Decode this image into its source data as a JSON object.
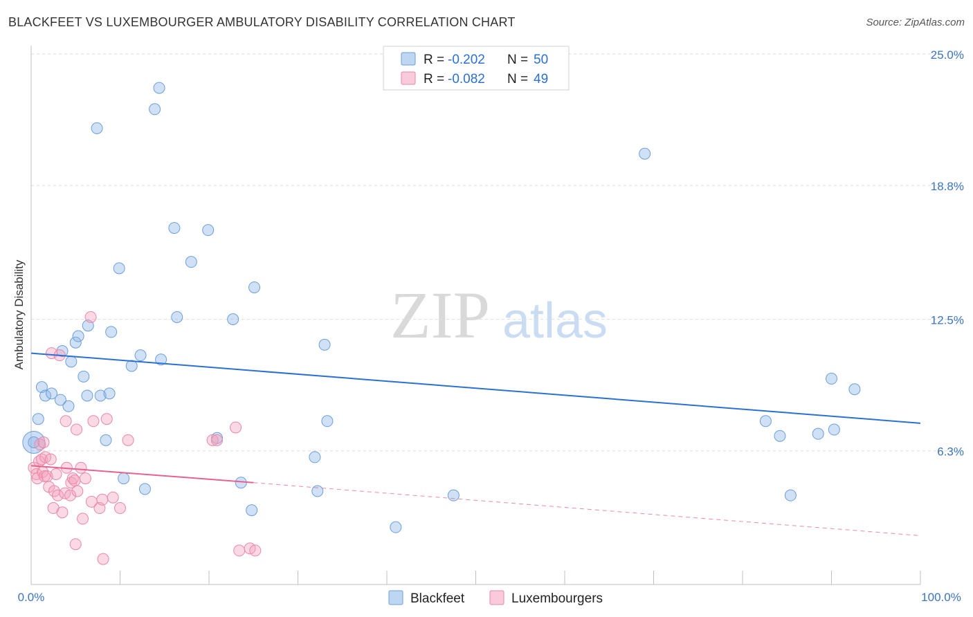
{
  "chart_data": {
    "type": "scatter",
    "title": "BLACKFEET VS LUXEMBOURGER AMBULATORY DISABILITY CORRELATION CHART",
    "source": "Source: ZipAtlas.com",
    "xlabel": "",
    "ylabel": "Ambulatory Disability",
    "watermark": {
      "zip": "ZIP",
      "atlas": "atlas"
    },
    "xlim": [
      0,
      100
    ],
    "ylim": [
      0,
      25
    ],
    "x_tick_labels": {
      "min": "0.0%",
      "max": "100.0%"
    },
    "y_ticks": [
      {
        "value": 6.3,
        "label": "6.3%"
      },
      {
        "value": 12.5,
        "label": "12.5%"
      },
      {
        "value": 18.8,
        "label": "18.8%"
      },
      {
        "value": 25.0,
        "label": "25.0%"
      }
    ],
    "legend": {
      "position": "top-center",
      "rows": [
        {
          "r_label": "R = ",
          "r_value": "-0.202",
          "n_label": "N = ",
          "n_value": "50"
        },
        {
          "r_label": "R = ",
          "r_value": "-0.082",
          "n_label": "N = ",
          "n_value": "49"
        }
      ]
    },
    "bottom_legend": [
      "Blackfeet",
      "Luxembourgers"
    ],
    "series": [
      {
        "name": "Blackfeet",
        "color": "#8ab4e8",
        "line_color": "#2a6fd4",
        "trend": {
          "x0": 0,
          "y0": 10.9,
          "x1": 100,
          "y1": 7.6
        },
        "points": [
          [
            0.3,
            6.7
          ],
          [
            0.8,
            7.8
          ],
          [
            1.2,
            9.3
          ],
          [
            1.6,
            8.9
          ],
          [
            2.3,
            9.0
          ],
          [
            3.3,
            8.7
          ],
          [
            3.5,
            11.0
          ],
          [
            4.2,
            8.4
          ],
          [
            4.5,
            10.5
          ],
          [
            5.0,
            11.4
          ],
          [
            5.3,
            11.7
          ],
          [
            5.9,
            9.8
          ],
          [
            6.3,
            8.9
          ],
          [
            6.4,
            12.2
          ],
          [
            7.4,
            21.5
          ],
          [
            7.8,
            8.9
          ],
          [
            8.4,
            6.8
          ],
          [
            8.8,
            9.0
          ],
          [
            9.0,
            11.9
          ],
          [
            9.9,
            14.9
          ],
          [
            10.4,
            5.0
          ],
          [
            11.3,
            10.3
          ],
          [
            12.3,
            10.8
          ],
          [
            12.8,
            4.5
          ],
          [
            13.9,
            22.4
          ],
          [
            14.4,
            23.4
          ],
          [
            14.6,
            10.6
          ],
          [
            16.1,
            16.8
          ],
          [
            16.4,
            12.6
          ],
          [
            18.0,
            15.2
          ],
          [
            19.9,
            16.7
          ],
          [
            20.9,
            6.9
          ],
          [
            22.7,
            12.5
          ],
          [
            23.6,
            4.8
          ],
          [
            24.8,
            3.5
          ],
          [
            25.1,
            14.0
          ],
          [
            31.9,
            6.0
          ],
          [
            32.2,
            4.4
          ],
          [
            33.0,
            11.3
          ],
          [
            33.3,
            7.7
          ],
          [
            41.0,
            2.7
          ],
          [
            47.5,
            4.2
          ],
          [
            69.0,
            20.3
          ],
          [
            82.6,
            7.7
          ],
          [
            84.2,
            7.0
          ],
          [
            85.4,
            4.2
          ],
          [
            88.5,
            7.1
          ],
          [
            90.0,
            9.7
          ],
          [
            90.3,
            7.3
          ],
          [
            92.6,
            9.2
          ]
        ]
      },
      {
        "name": "Luxembourgers",
        "color": "#f4a0bb",
        "line_color": "#e8608c",
        "trend": {
          "x0": 0,
          "y0": 5.6,
          "x1": 25,
          "y1": 4.8
        },
        "trend_extension": {
          "x0": 25,
          "y0": 4.8,
          "x1": 100,
          "y1": 2.3
        },
        "points": [
          [
            0.3,
            5.5
          ],
          [
            0.6,
            5.2
          ],
          [
            0.7,
            5.0
          ],
          [
            0.9,
            5.8
          ],
          [
            1.0,
            6.6
          ],
          [
            1.2,
            5.9
          ],
          [
            1.3,
            5.3
          ],
          [
            1.4,
            6.7
          ],
          [
            1.5,
            5.1
          ],
          [
            1.6,
            6.0
          ],
          [
            1.8,
            5.1
          ],
          [
            2.0,
            4.6
          ],
          [
            2.2,
            5.9
          ],
          [
            2.3,
            10.9
          ],
          [
            2.5,
            3.6
          ],
          [
            2.6,
            4.4
          ],
          [
            2.8,
            5.2
          ],
          [
            3.0,
            4.2
          ],
          [
            3.2,
            10.8
          ],
          [
            3.5,
            3.4
          ],
          [
            3.8,
            4.3
          ],
          [
            3.9,
            7.7
          ],
          [
            4.0,
            5.5
          ],
          [
            4.4,
            4.2
          ],
          [
            4.5,
            4.8
          ],
          [
            4.7,
            5.0
          ],
          [
            4.9,
            4.9
          ],
          [
            5.0,
            1.9
          ],
          [
            5.1,
            7.3
          ],
          [
            5.2,
            4.4
          ],
          [
            5.6,
            5.5
          ],
          [
            5.8,
            3.1
          ],
          [
            6.1,
            5.0
          ],
          [
            6.7,
            12.6
          ],
          [
            6.8,
            3.9
          ],
          [
            7.0,
            7.7
          ],
          [
            7.7,
            3.6
          ],
          [
            8.0,
            4.0
          ],
          [
            8.1,
            1.2
          ],
          [
            8.5,
            7.8
          ],
          [
            9.2,
            4.1
          ],
          [
            10.0,
            3.6
          ],
          [
            10.9,
            6.8
          ],
          [
            20.4,
            6.8
          ],
          [
            20.9,
            6.8
          ],
          [
            23.0,
            7.4
          ],
          [
            23.4,
            1.6
          ],
          [
            24.6,
            1.7
          ],
          [
            25.2,
            1.6
          ]
        ]
      }
    ]
  }
}
